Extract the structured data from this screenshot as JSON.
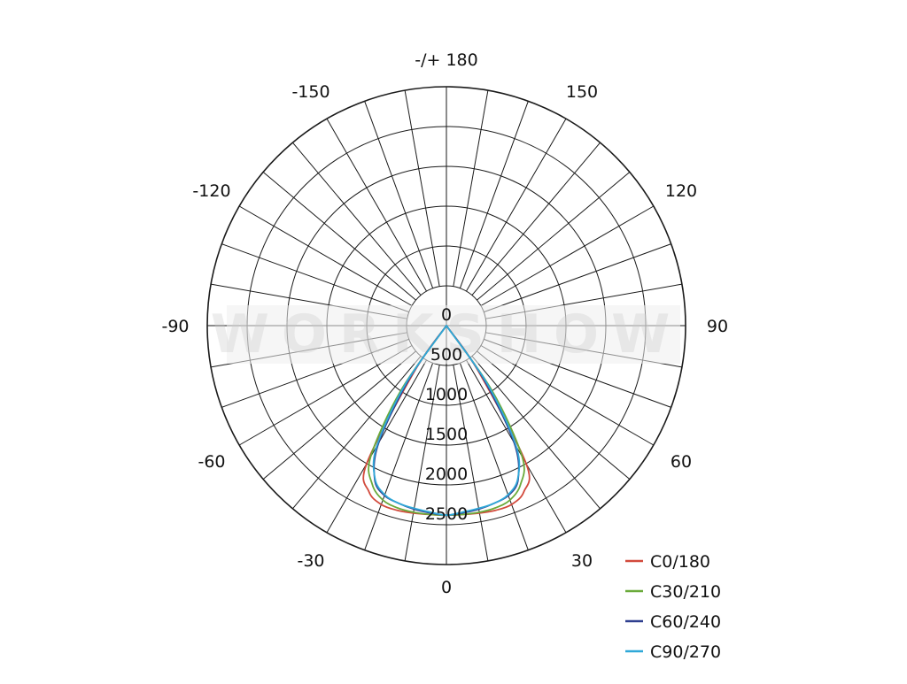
{
  "chart_data": {
    "type": "polar-line",
    "title": "",
    "watermark": "WORKSHOW",
    "top_label": "-/+ 180",
    "bottom_label": "0",
    "angle_labels": [
      {
        "text": "150",
        "deg": 150
      },
      {
        "text": "-150",
        "deg": -150
      },
      {
        "text": "120",
        "deg": 120
      },
      {
        "text": "-120",
        "deg": -120
      },
      {
        "text": "90",
        "deg": 90
      },
      {
        "text": "-90",
        "deg": -90
      },
      {
        "text": "60",
        "deg": 60
      },
      {
        "text": "-60",
        "deg": -60
      },
      {
        "text": "30",
        "deg": 30
      },
      {
        "text": "-30",
        "deg": -30
      }
    ],
    "radial_labels": [
      {
        "text": "0",
        "value": 0
      },
      {
        "text": "500",
        "value": 500
      },
      {
        "text": "1000",
        "value": 1000
      },
      {
        "text": "1500",
        "value": 1500
      },
      {
        "text": "2000",
        "value": 2000
      },
      {
        "text": "2500",
        "value": 2500
      }
    ],
    "r_axis": {
      "min": 0,
      "max": 3000,
      "ring_step": 500
    },
    "angle_grid_step_deg": 10,
    "grid": true,
    "legend_position": "bottom-right",
    "series": [
      {
        "name": "C0/180",
        "color": "#d24a3c",
        "angles_deg": [
          -40,
          -35,
          -30,
          -25,
          -20,
          -15,
          -10,
          -5,
          0,
          5,
          10,
          15,
          20,
          25,
          30,
          35,
          40
        ],
        "values": [
          0,
          700,
          2000,
          2300,
          2390,
          2400,
          2390,
          2380,
          2380,
          2380,
          2390,
          2400,
          2390,
          2300,
          2000,
          700,
          0
        ]
      },
      {
        "name": "C30/210",
        "color": "#6aaa3a",
        "angles_deg": [
          -40,
          -35,
          -30,
          -25,
          -20,
          -15,
          -10,
          -5,
          0,
          5,
          10,
          15,
          20,
          25,
          30,
          35,
          40
        ],
        "values": [
          0,
          1000,
          1900,
          2200,
          2330,
          2370,
          2380,
          2380,
          2380,
          2380,
          2380,
          2370,
          2330,
          2200,
          1900,
          1000,
          0
        ]
      },
      {
        "name": "C60/240",
        "color": "#2f3f8f",
        "angles_deg": [
          -40,
          -35,
          -30,
          -25,
          -20,
          -15,
          -10,
          -5,
          0,
          5,
          10,
          15,
          20,
          25,
          30,
          35,
          40
        ],
        "values": [
          0,
          800,
          1700,
          2130,
          2270,
          2310,
          2340,
          2360,
          2380,
          2360,
          2340,
          2310,
          2270,
          2130,
          1700,
          800,
          0
        ]
      },
      {
        "name": "C90/270",
        "color": "#2fa8d8",
        "angles_deg": [
          -40,
          -35,
          -30,
          -25,
          -20,
          -15,
          -10,
          -5,
          0,
          5,
          10,
          15,
          20,
          25,
          30,
          35,
          40
        ],
        "values": [
          0,
          900,
          1750,
          2120,
          2260,
          2310,
          2330,
          2350,
          2380,
          2350,
          2330,
          2310,
          2260,
          2120,
          1750,
          900,
          0
        ]
      }
    ]
  }
}
